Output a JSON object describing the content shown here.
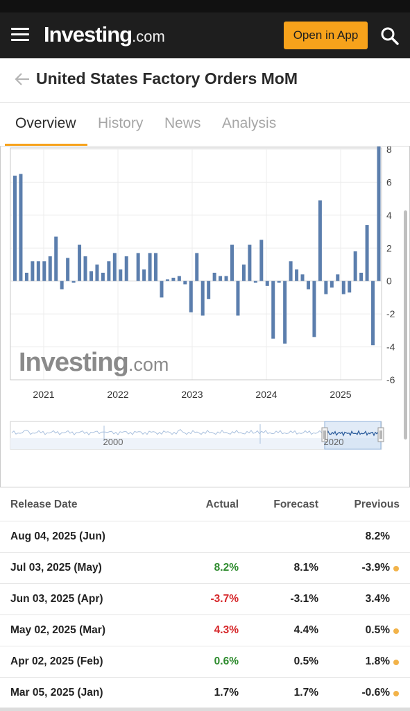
{
  "header": {
    "logo_main": "Investing",
    "logo_domain": ".com",
    "open_app_label": "Open in App"
  },
  "page": {
    "title": "United States Factory Orders MoM"
  },
  "tabs": [
    {
      "label": "Overview",
      "active": true
    },
    {
      "label": "History",
      "active": false
    },
    {
      "label": "News",
      "active": false
    },
    {
      "label": "Analysis",
      "active": false
    }
  ],
  "chart_data": {
    "type": "bar",
    "title": "",
    "xlabel": "",
    "ylabel": "",
    "ylim": [
      -6,
      8
    ],
    "yticks": [
      "8",
      "6",
      "4",
      "2",
      "0",
      "-2",
      "-4",
      "-6"
    ],
    "year_labels": [
      "2021",
      "2022",
      "2023",
      "2024",
      "2025"
    ],
    "watermark": "Investing.com",
    "navigator_labels": [
      "2000",
      "2020"
    ],
    "color": "#5b7ead",
    "values": [
      6.4,
      6.5,
      0.5,
      1.2,
      1.2,
      1.2,
      1.5,
      2.7,
      -0.5,
      1.4,
      -0.1,
      2.2,
      1.5,
      0.6,
      1.0,
      0.5,
      1.2,
      1.7,
      0.7,
      1.5,
      0,
      1.7,
      0.7,
      1.7,
      1.7,
      -1.0,
      0.1,
      0.2,
      0.3,
      -0.2,
      -1.9,
      1.7,
      -2.1,
      -1.1,
      0.5,
      0.3,
      0.3,
      2.2,
      -2.1,
      1.0,
      2.2,
      -0.1,
      2.5,
      -0.3,
      -3.5,
      -0.1,
      -3.8,
      1.2,
      0.7,
      0.4,
      -0.5,
      -3.4,
      4.9,
      -0.8,
      -0.4,
      0.4,
      -0.8,
      -0.7,
      1.8,
      0.5,
      3.4,
      -3.9,
      8.2
    ]
  },
  "table": {
    "headers": {
      "release_date": "Release Date",
      "actual": "Actual",
      "forecast": "Forecast",
      "previous": "Previous"
    },
    "rows": [
      {
        "date": "Aug 04, 2025 (Jun)",
        "actual": "",
        "actual_class": "neu",
        "forecast": "",
        "previous": "8.2%",
        "revised": false
      },
      {
        "date": "Jul 03, 2025 (May)",
        "actual": "8.2%",
        "actual_class": "pos",
        "forecast": "8.1%",
        "previous": "-3.9%",
        "revised": true
      },
      {
        "date": "Jun 03, 2025 (Apr)",
        "actual": "-3.7%",
        "actual_class": "neg",
        "forecast": "-3.1%",
        "previous": "3.4%",
        "revised": false
      },
      {
        "date": "May 02, 2025 (Mar)",
        "actual": "4.3%",
        "actual_class": "neg",
        "forecast": "4.4%",
        "previous": "0.5%",
        "revised": true
      },
      {
        "date": "Apr 02, 2025 (Feb)",
        "actual": "0.6%",
        "actual_class": "pos",
        "forecast": "0.5%",
        "previous": "1.8%",
        "revised": true
      },
      {
        "date": "Mar 05, 2025 (Jan)",
        "actual": "1.7%",
        "actual_class": "neu",
        "forecast": "1.7%",
        "previous": "-0.6%",
        "revised": true
      }
    ]
  },
  "colors": {
    "accent": "#f7a21b",
    "topbar": "#1e1e1e",
    "bar": "#5b7ead",
    "positive": "#2e8b2e",
    "negative": "#d6282b",
    "revision_dot": "#f2b34a"
  }
}
